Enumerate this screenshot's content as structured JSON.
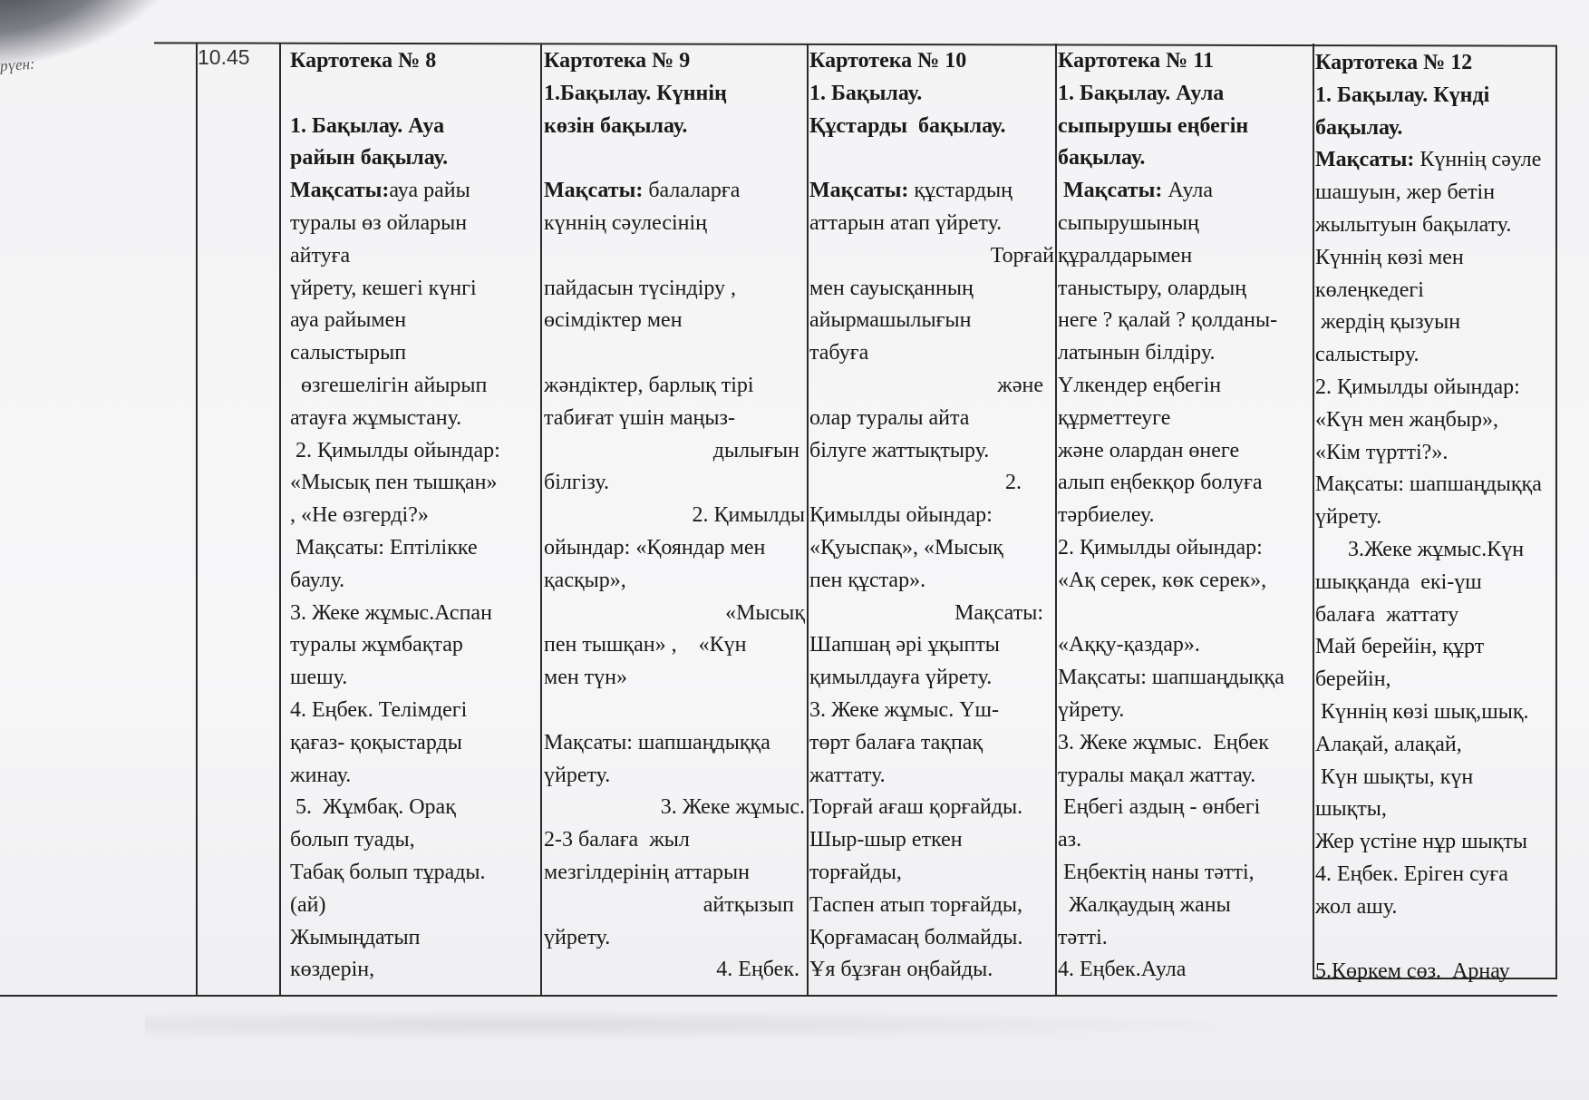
{
  "row": {
    "label": "рүен:",
    "time": "10.45"
  },
  "columns": [
    {
      "lines": [
        {
          "b": "Картотека № 8"
        },
        {
          "t": ""
        },
        {
          "b": "1. Бақылау. Ауа"
        },
        {
          "b": "райын бақылау."
        },
        {
          "b": "Мақсаты:",
          "t": "ауа райы"
        },
        {
          "t": "туралы өз ойларын"
        },
        {
          "t": "айтуға"
        },
        {
          "t": "үйрету, кешегі күнгі"
        },
        {
          "t": "ауа райымен"
        },
        {
          "t": "салыстырып"
        },
        {
          "t": "  өзгешелігін айырып"
        },
        {
          "t": "атауға жұмыстану."
        },
        {
          "t": " 2. Қимылды ойындар:"
        },
        {
          "t": "«Мысық пен тышқан»"
        },
        {
          "t": ", «Не өзгерді?»"
        },
        {
          "t": " Мақсаты: Ептілікке"
        },
        {
          "t": "баулу."
        },
        {
          "t": "3. Жеке жұмыс.Аспан"
        },
        {
          "t": "туралы жұмбақтар"
        },
        {
          "t": "шешу."
        },
        {
          "t": "4. Еңбек. Телімдегі"
        },
        {
          "t": "қағаз- қоқыстарды"
        },
        {
          "t": "жинау."
        },
        {
          "t": " 5.  Жұмбақ. Орақ"
        },
        {
          "t": "болып туады,"
        },
        {
          "t": "Табақ болып тұрады."
        },
        {
          "t": "(ай)"
        },
        {
          "t": "Жымыңдатып"
        },
        {
          "t": "көздерін,"
        }
      ]
    },
    {
      "lines": [
        {
          "b": "Картотека № 9"
        },
        {
          "b": "1.Бақылау. Күннің"
        },
        {
          "b": "көзін бақылау."
        },
        {
          "t": ""
        },
        {
          "b": "Мақсаты:",
          "t": " балаларға"
        },
        {
          "t": "күннің сәулесінің"
        },
        {
          "t": ""
        },
        {
          "t": "пайдасын түсіндіру ,"
        },
        {
          "t": "өсімдіктер мен"
        },
        {
          "t": ""
        },
        {
          "t": "жәндіктер, барлық тірі"
        },
        {
          "t": "табиғат үшін маңыз-"
        },
        {
          "t": "дылығын ",
          "align": "right"
        },
        {
          "t": "білгізу."
        },
        {
          "t": "2. Қимылды",
          "align": "right"
        },
        {
          "t": "ойындар: «Қояндар мен"
        },
        {
          "t": "қасқыр»,"
        },
        {
          "t": "«Мысық",
          "align": "right"
        },
        {
          "t": "пен тышқан» ,    «Күн"
        },
        {
          "t": "мен түн»"
        },
        {
          "t": ""
        },
        {
          "t": "Мақсаты: шапшаңдыққа"
        },
        {
          "t": "үйрету."
        },
        {
          "t": "3. Жеке жұмыс.",
          "align": "right"
        },
        {
          "t": "2-3 балаға  жыл"
        },
        {
          "t": "мезгілдерінің аттарын"
        },
        {
          "t": "айтқызып  ",
          "align": "right"
        },
        {
          "t": "үйрету."
        },
        {
          "t": "4. Еңбек. ",
          "align": "right"
        }
      ]
    },
    {
      "lines": [
        {
          "b": "Картотека № 10"
        },
        {
          "b": "1. Бақылау."
        },
        {
          "b": "Құстарды  бақылау."
        },
        {
          "t": ""
        },
        {
          "b": "Мақсаты:",
          "t": " құстардың"
        },
        {
          "t": "аттарын атап үйрету."
        },
        {
          "t": "Торғай",
          "align": "right"
        },
        {
          "t": "мен сауысқанның"
        },
        {
          "t": "айырмашылығын"
        },
        {
          "t": "табуға"
        },
        {
          "t": "және  ",
          "align": "right"
        },
        {
          "t": "олар туралы айта"
        },
        {
          "t": "білуге жаттықтыру."
        },
        {
          "t": "2.      ",
          "align": "right"
        },
        {
          "t": "Қимылды ойындар:"
        },
        {
          "t": "«Қуыспақ», «Мысық"
        },
        {
          "t": "пен құстар»."
        },
        {
          "t": "Мақсаты:  ",
          "align": "right"
        },
        {
          "t": "Шапшаң әрі ұқыпты"
        },
        {
          "t": "қимылдауға үйрету."
        },
        {
          "t": "3. Жеке жұмыс. Үш-"
        },
        {
          "t": "төрт балаға тақпақ"
        },
        {
          "t": "жаттату."
        },
        {
          "t": "Торғай ағаш қорғайды."
        },
        {
          "t": "Шыр-шыр еткен"
        },
        {
          "t": "торғайды,"
        },
        {
          "t": "Таспен атып торғайды,"
        },
        {
          "t": "Қорғамасаң болмайды."
        },
        {
          "t": "Ұя бұзған оңбайды."
        }
      ]
    },
    {
      "lines": [
        {
          "b": "Картотека № 11"
        },
        {
          "b": "1. Бақылау. Аула"
        },
        {
          "b": "сыпырушы еңбегін"
        },
        {
          "b": "бақылау."
        },
        {
          "b": " Мақсаты:",
          "t": " Аула"
        },
        {
          "t": "сыпырушының"
        },
        {
          "t": "құралдарымен"
        },
        {
          "t": "таныстыру, олардың"
        },
        {
          "t": "неге ? қалай ? қолданы-"
        },
        {
          "t": "латынын білдіру."
        },
        {
          "t": "Үлкендер еңбегін"
        },
        {
          "t": "құрметтеуге"
        },
        {
          "t": "және олардан өнеге"
        },
        {
          "t": "алып еңбекқор болуға"
        },
        {
          "t": "тәрбиелеу."
        },
        {
          "t": "2. Қимылды ойындар:"
        },
        {
          "t": "«Ақ серек, көк серек»,"
        },
        {
          "t": ""
        },
        {
          "t": "«Аққу-қаздар»."
        },
        {
          "t": "Мақсаты: шапшаңдыққа"
        },
        {
          "t": "үйрету."
        },
        {
          "t": "3. Жеке жұмыс.  Еңбек"
        },
        {
          "t": "туралы мақал жаттау."
        },
        {
          "t": " Еңбегі аздың - өнбегі"
        },
        {
          "t": "аз."
        },
        {
          "t": " Еңбектің наны тәтті,"
        },
        {
          "t": "  Жалқаудың жаны"
        },
        {
          "t": "тәтті."
        },
        {
          "t": "4. Еңбек.Аула"
        }
      ]
    },
    {
      "lines": [
        {
          "b": "Картотека № 12"
        },
        {
          "b": "1. Бақылау. Күнді"
        },
        {
          "b": "бақылау."
        },
        {
          "b": "Мақсаты:",
          "t": " Күннің сәуле"
        },
        {
          "t": "шашуын, жер бетін"
        },
        {
          "t": "жылытуын бақылату."
        },
        {
          "t": "Күннің көзі мен"
        },
        {
          "t": "көлеңкедегі"
        },
        {
          "t": " жердің қызуын"
        },
        {
          "t": "салыстыру."
        },
        {
          "t": "2. Қимылды ойындар:"
        },
        {
          "t": "«Күн мен жаңбыр»,"
        },
        {
          "t": "«Кім түртті?»."
        },
        {
          "t": "Мақсаты: шапшаңдыққа"
        },
        {
          "t": "үйрету."
        },
        {
          "t": "      3.Жеке жұмыс.Күн"
        },
        {
          "t": "шыққанда  екі-үш"
        },
        {
          "t": "балаға  жаттату"
        },
        {
          "t": "Май берейін, құрт"
        },
        {
          "t": "берейін,"
        },
        {
          "t": " Күннің көзі шық,шық."
        },
        {
          "t": "Алақай, алақай,"
        },
        {
          "t": " Күн шықты, күн"
        },
        {
          "t": "шықты,"
        },
        {
          "t": "Жер үстіне нұр шықты"
        },
        {
          "t": "4. Еңбек. Еріген суға"
        },
        {
          "t": "жол ашу."
        },
        {
          "t": ""
        },
        {
          "t": "5.Көркем сөз.  Арнау"
        }
      ]
    }
  ]
}
